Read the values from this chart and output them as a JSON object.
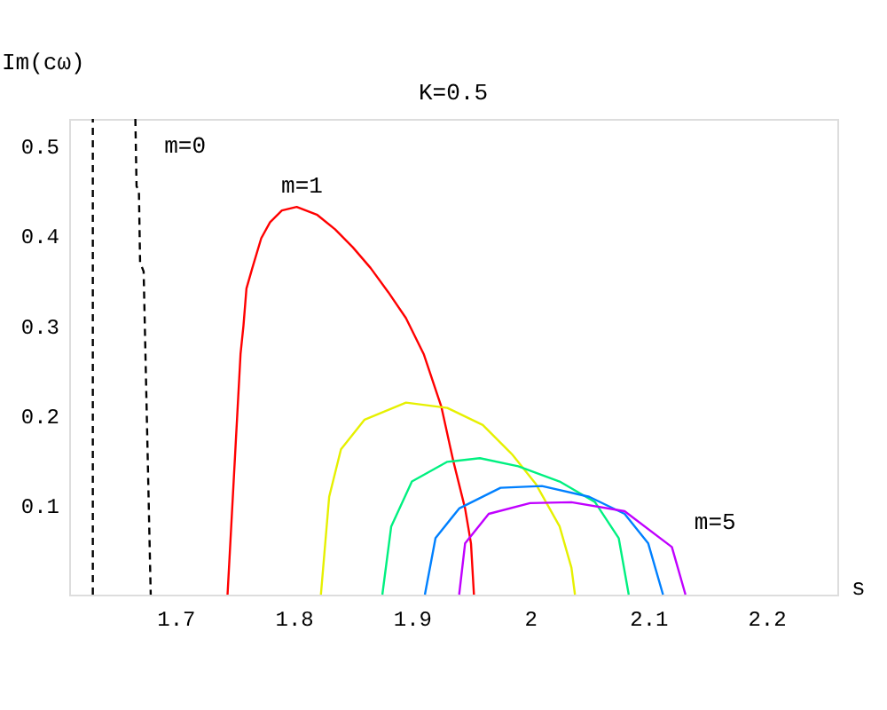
{
  "chart_data": {
    "type": "line",
    "title": "K=0.5",
    "xlabel": "s",
    "ylabel": "Im(cω)",
    "xlim": [
      1.61,
      2.26
    ],
    "ylim": [
      0,
      0.53
    ],
    "xticks": [
      1.7,
      1.8,
      1.9,
      2,
      2.1,
      2.2
    ],
    "yticks": [
      0.1,
      0.2,
      0.3,
      0.4,
      0.5
    ],
    "grid": false,
    "marker": "none",
    "series": [
      {
        "color": "#000000",
        "line_style": "dashed",
        "x": [
          1.63,
          1.63
        ],
        "values": [
          0,
          0.53
        ]
      },
      {
        "name": "m=0",
        "color": "#000000",
        "line_style": "dashed",
        "x": [
          1.666,
          1.667,
          1.669,
          1.67,
          1.673,
          1.679
        ],
        "values": [
          0.53,
          0.455,
          0.45,
          0.37,
          0.36,
          0
        ]
      },
      {
        "name": "m=1",
        "color": "#ff0000",
        "line_style": "solid",
        "x": [
          1.744,
          1.755,
          1.7575,
          1.76,
          1.765,
          1.7725,
          1.78,
          1.79,
          1.8025,
          1.82,
          1.835,
          1.85,
          1.865,
          1.88,
          1.895,
          1.91,
          1.925,
          1.935,
          1.945,
          1.95,
          1.9525
        ],
        "values": [
          0,
          0.268,
          0.3,
          0.341,
          0.364,
          0.397,
          0.415,
          0.428,
          0.432,
          0.423,
          0.407,
          0.387,
          0.364,
          0.337,
          0.308,
          0.268,
          0.209,
          0.149,
          0.096,
          0.057,
          0
        ]
      },
      {
        "color": "#e6f000",
        "line_style": "solid",
        "x": [
          1.823,
          1.83,
          1.84,
          1.86,
          1.895,
          1.93,
          1.96,
          1.985,
          2.005,
          2.025,
          2.035,
          2.038
        ],
        "values": [
          0,
          0.109,
          0.162,
          0.195,
          0.214,
          0.208,
          0.189,
          0.156,
          0.123,
          0.076,
          0.03,
          0
        ]
      },
      {
        "color": "#00f080",
        "line_style": "solid",
        "x": [
          1.875,
          1.8825,
          1.9,
          1.93,
          1.9575,
          1.99,
          2.025,
          2.055,
          2.075,
          2.0835
        ],
        "values": [
          0,
          0.076,
          0.126,
          0.148,
          0.152,
          0.143,
          0.126,
          0.103,
          0.063,
          0
        ]
      },
      {
        "color": "#0080ff",
        "line_style": "solid",
        "x": [
          1.911,
          1.92,
          1.94,
          1.975,
          2.01,
          2.05,
          2.08,
          2.1,
          2.1125
        ],
        "values": [
          0,
          0.063,
          0.096,
          0.119,
          0.121,
          0.109,
          0.09,
          0.057,
          0
        ]
      },
      {
        "name": "m=5",
        "color": "#c000ff",
        "line_style": "solid",
        "x": [
          1.94,
          1.945,
          1.965,
          2.0,
          2.035,
          2.08,
          2.12,
          2.1315
        ],
        "values": [
          0,
          0.057,
          0.09,
          0.102,
          0.103,
          0.093,
          0.053,
          0
        ]
      }
    ]
  }
}
